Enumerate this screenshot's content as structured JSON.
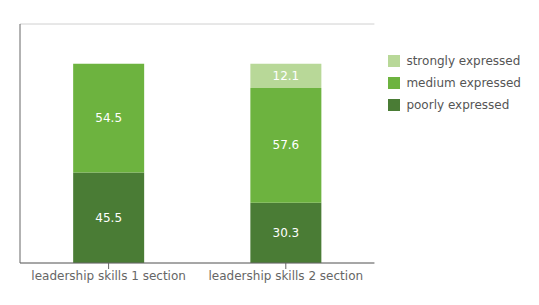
{
  "chart_data": {
    "type": "bar",
    "categories": [
      "leadership skills 1 section",
      "leadership skills 2 section"
    ],
    "series": [
      {
        "name": "poorly expressed",
        "color": "#4a7c35",
        "values": [
          45.5,
          30.3
        ]
      },
      {
        "name": "medium expressed",
        "color": "#6db33f",
        "values": [
          54.5,
          57.6
        ]
      },
      {
        "name": "strongly expressed",
        "color": "#b8d898",
        "values": [
          0,
          12.1
        ]
      }
    ],
    "stacked": true,
    "ylim": [
      0,
      120
    ],
    "yticks": [
      0,
      20,
      40,
      60,
      80,
      100
    ],
    "grid": true,
    "tick_labels": "x",
    "data_labels": true,
    "legend": "upper right"
  }
}
